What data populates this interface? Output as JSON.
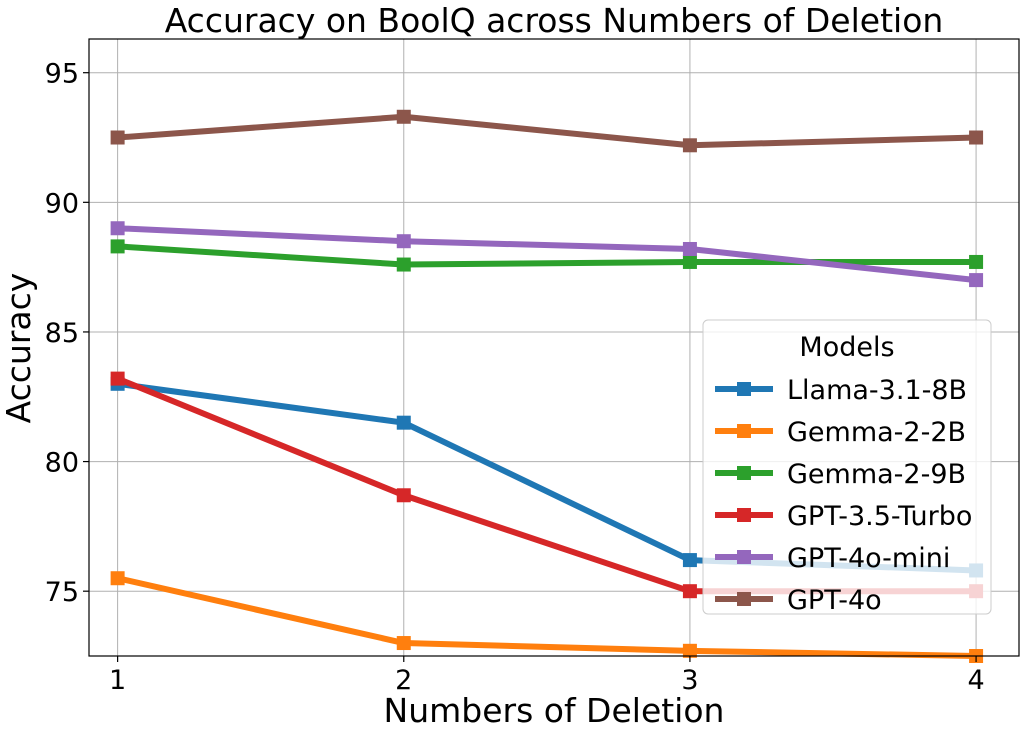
{
  "chart_data": {
    "type": "line",
    "title": "Accuracy on BoolQ across Numbers of Deletion",
    "xlabel": "Numbers of Deletion",
    "ylabel": "Accuracy",
    "x": [
      1,
      2,
      3,
      4
    ],
    "x_tick_labels": [
      "1",
      "2",
      "3",
      "4"
    ],
    "xlim": [
      0.9,
      4.15
    ],
    "ylim": [
      72.5,
      96.3
    ],
    "y_ticks": [
      75,
      80,
      85,
      90,
      95
    ],
    "y_tick_labels": [
      "75",
      "80",
      "85",
      "90",
      "95"
    ],
    "grid": true,
    "legend": {
      "title": "Models",
      "placement": "lower-right",
      "opacity": 0.8
    },
    "series": [
      {
        "name": "Llama-3.1-8B",
        "color": "#1f77b4",
        "values": [
          83.0,
          81.5,
          76.2,
          75.8
        ]
      },
      {
        "name": "Gemma-2-2B",
        "color": "#ff7f0e",
        "values": [
          75.5,
          73.0,
          72.7,
          72.5
        ]
      },
      {
        "name": "Gemma-2-9B",
        "color": "#2ca02c",
        "values": [
          88.3,
          87.6,
          87.7,
          87.7
        ]
      },
      {
        "name": "GPT-3.5-Turbo",
        "color": "#d62728",
        "values": [
          83.2,
          78.7,
          75.0,
          75.0
        ]
      },
      {
        "name": "GPT-4o-mini",
        "color": "#9467bd",
        "values": [
          89.0,
          88.5,
          88.2,
          87.0
        ]
      },
      {
        "name": "GPT-4o",
        "color": "#8c564b",
        "values": [
          92.5,
          93.3,
          92.2,
          92.5
        ]
      }
    ]
  }
}
